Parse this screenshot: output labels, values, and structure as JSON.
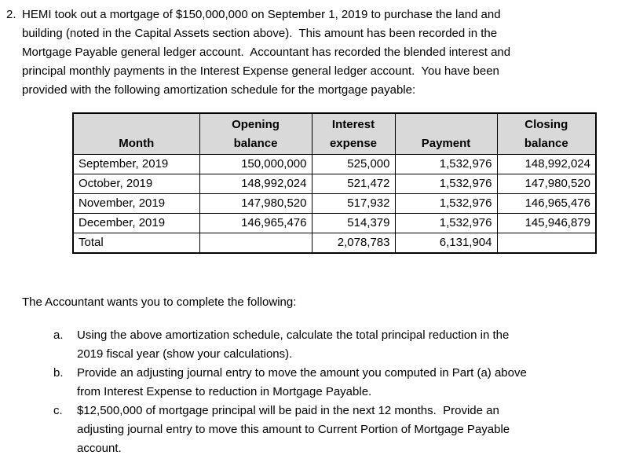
{
  "intro": {
    "number": "2.",
    "lines": [
      "HEMI took out a mortgage of $150,000,000 on September 1, 2019 to purchase the land and",
      "building (noted in the Capital Assets section above).  This amount has been recorded in the",
      "Mortgage Payable general ledger account.  Accountant has recorded the blended interest and",
      "principal monthly payments in the Interest Expense general ledger account.  You have been",
      "provided with the following amortization schedule for the mortgage payable:"
    ]
  },
  "table": {
    "headers": [
      {
        "name": "month",
        "lines": [
          "Month"
        ]
      },
      {
        "name": "opening-balance",
        "lines": [
          "Opening",
          "balance"
        ]
      },
      {
        "name": "interest-expense",
        "lines": [
          "Interest",
          "expense"
        ]
      },
      {
        "name": "payment",
        "lines": [
          "Payment"
        ]
      },
      {
        "name": "closing-balance",
        "lines": [
          "Closing",
          "balance"
        ]
      }
    ],
    "rows": [
      [
        "September, 2019",
        "150,000,000",
        "525,000",
        "1,532,976",
        "148,992,024"
      ],
      [
        "October, 2019",
        "148,992,024",
        "521,472",
        "1,532,976",
        "147,980,520"
      ],
      [
        "November, 2019",
        "147,980,520",
        "517,932",
        "1,532,976",
        "146,965,476"
      ],
      [
        "December, 2019",
        "146,965,476",
        "514,379",
        "1,532,976",
        "145,946,879"
      ],
      [
        "Total",
        "",
        "2,078,783",
        "6,131,904",
        ""
      ]
    ]
  },
  "prompt": "The Accountant wants you to complete the following:",
  "tasks": [
    {
      "marker": "a.",
      "lines": [
        "Using the above amortization schedule, calculate the total principal reduction in the",
        "2019 fiscal year (show your calculations)."
      ]
    },
    {
      "marker": "b.",
      "lines": [
        "Provide an adjusting journal entry to move the amount you computed in Part (a) above",
        "from Interest Expense to reduction in Mortgage Payable."
      ]
    },
    {
      "marker": "c.",
      "lines": [
        "$12,500,000 of mortgage principal will be paid in the next 12 months.  Provide an",
        "adjusting journal entry to move this amount to Current Portion of Mortgage Payable",
        "account."
      ]
    }
  ],
  "colors": {
    "header_bg": "#d9d9d9",
    "border": "#000000",
    "text": "#000000",
    "page_bg": "#ffffff"
  }
}
